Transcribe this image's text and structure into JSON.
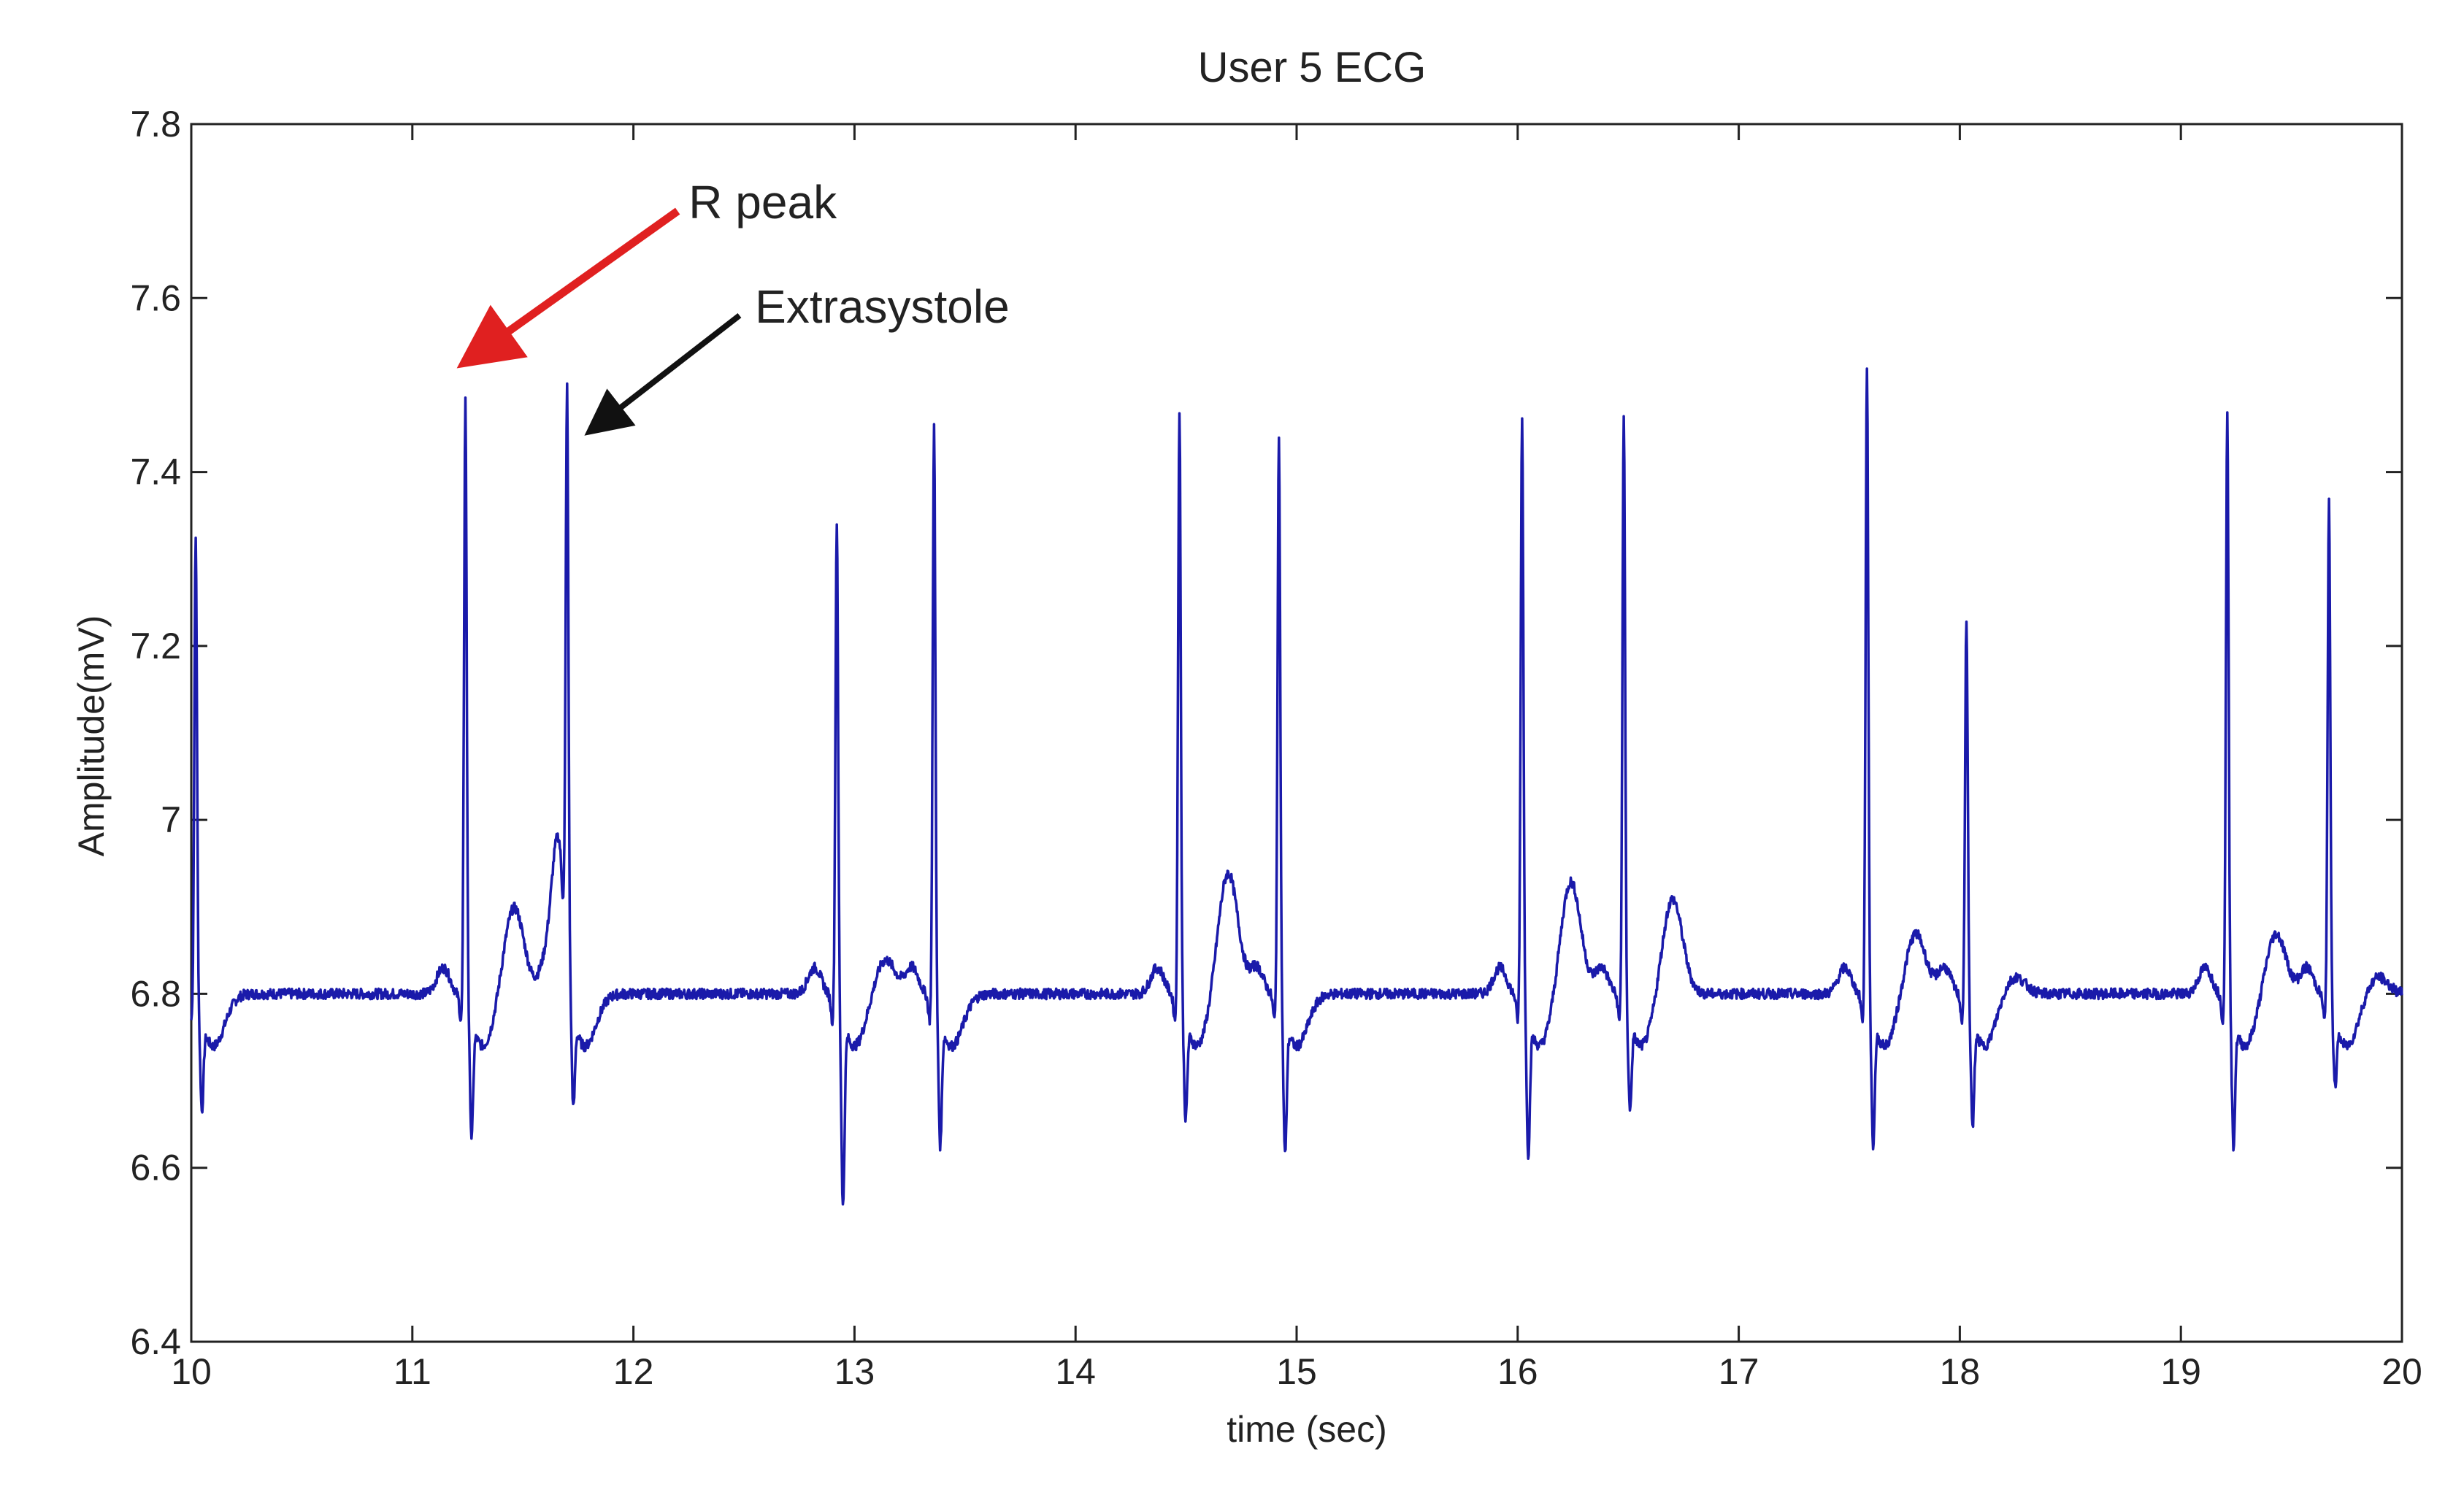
{
  "chart_data": {
    "type": "line",
    "title": "User 5 ECG",
    "xlabel": "time (sec)",
    "ylabel": "Amplitude(mV)",
    "xlim": [
      10,
      20
    ],
    "ylim": [
      6.4,
      7.8
    ],
    "x_ticks": [
      10,
      11,
      12,
      13,
      14,
      15,
      16,
      17,
      18,
      19,
      20
    ],
    "x_tick_labels": [
      "10",
      "11",
      "12",
      "13",
      "14",
      "15",
      "16",
      "17",
      "18",
      "19",
      "20"
    ],
    "y_ticks": [
      6.4,
      6.6,
      6.8,
      7.0,
      7.2,
      7.4,
      7.6,
      7.8
    ],
    "y_tick_labels": [
      "6.4",
      "6.6",
      "6.8",
      "7",
      "7.2",
      "7.4",
      "7.6",
      "7.8"
    ],
    "grid": false,
    "legend": "none",
    "line_color": "#1a1aaa",
    "baseline": 6.8,
    "series": [
      {
        "beats": [
          {
            "t": 10.02,
            "r": 7.34,
            "s": 6.7,
            "t_wave": 0,
            "extra": false
          },
          {
            "t": 11.24,
            "r": 7.5,
            "s": 6.67,
            "t_wave": 6.9,
            "extra": false
          },
          {
            "t": 11.7,
            "r": 7.44,
            "s": 6.69,
            "t_wave": 0,
            "extra": true
          },
          {
            "t": 12.92,
            "r": 7.36,
            "s": 6.59,
            "t_wave": 6.84,
            "extra": false
          },
          {
            "t": 13.36,
            "r": 7.47,
            "s": 6.66,
            "t_wave": 0,
            "extra": false
          },
          {
            "t": 14.47,
            "r": 7.49,
            "s": 6.69,
            "t_wave": 6.94,
            "extra": false
          },
          {
            "t": 14.92,
            "r": 7.46,
            "s": 6.65,
            "t_wave": 0,
            "extra": false
          },
          {
            "t": 16.02,
            "r": 7.48,
            "s": 6.65,
            "t_wave": 6.93,
            "extra": false
          },
          {
            "t": 16.48,
            "r": 7.48,
            "s": 6.7,
            "t_wave": 6.91,
            "extra": false
          },
          {
            "t": 17.58,
            "r": 7.54,
            "s": 6.66,
            "t_wave": 6.87,
            "extra": false
          },
          {
            "t": 18.03,
            "r": 7.25,
            "s": 6.68,
            "t_wave": 6.82,
            "extra": false
          },
          {
            "t": 19.21,
            "r": 7.49,
            "s": 6.66,
            "t_wave": 6.87,
            "extra": false
          },
          {
            "t": 19.67,
            "r": 7.38,
            "s": 6.73,
            "t_wave": 6.82,
            "extra": false
          }
        ]
      }
    ],
    "annotations": [
      {
        "text": "R peak",
        "x": 12.25,
        "y": 7.71,
        "arrow_from": [
          12.2,
          7.7
        ],
        "arrow_to": [
          11.26,
          7.53
        ],
        "color": "#e02020"
      },
      {
        "text": "Extrasystole",
        "x": 12.55,
        "y": 7.59,
        "arrow_from": [
          12.48,
          7.58
        ],
        "arrow_to": [
          11.82,
          7.45
        ],
        "color": "#111111"
      }
    ]
  }
}
